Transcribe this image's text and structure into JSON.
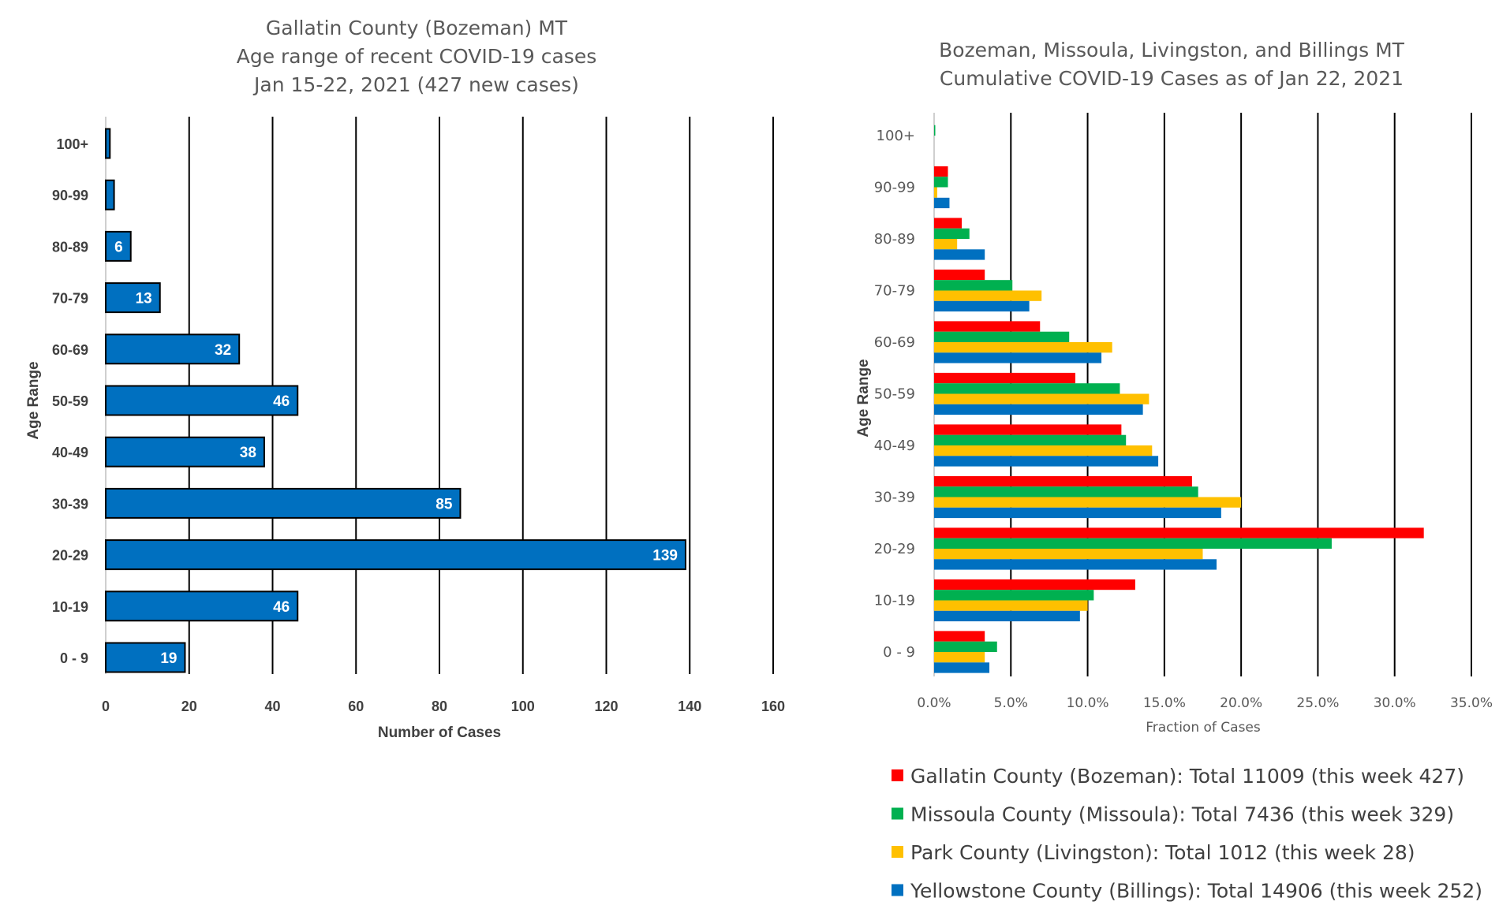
{
  "chart_data": [
    {
      "type": "bar",
      "orientation": "horizontal",
      "title_lines": [
        "Gallatin County (Bozeman) MT",
        "Age range of recent COVID-19 cases",
        "Jan 15-22, 2021 (427 new cases)"
      ],
      "xlabel": "Number of Cases",
      "ylabel": "Age Range",
      "categories": [
        "100+",
        "90-99",
        "80-89",
        "70-79",
        "60-69",
        "50-59",
        "40-49",
        "30-39",
        "20-29",
        "10-19",
        "0 - 9"
      ],
      "values": [
        1,
        2,
        6,
        13,
        32,
        46,
        38,
        85,
        139,
        46,
        19
      ],
      "data_labels": [
        "",
        "",
        "6",
        "13",
        "32",
        "46",
        "38",
        "85",
        "139",
        "46",
        "19"
      ],
      "xlim": [
        0,
        160
      ],
      "xticks": [
        0,
        20,
        40,
        60,
        80,
        100,
        120,
        140,
        160
      ],
      "xtick_labels": [
        "0",
        "20",
        "40",
        "60",
        "80",
        "100",
        "120",
        "140",
        "160"
      ],
      "grid": "vertical",
      "bar_color": "#0070c0"
    },
    {
      "type": "bar",
      "orientation": "horizontal",
      "title_lines": [
        "Bozeman, Missoula, Livingston, and Billings MT",
        "Cumulative COVID-19 Cases as of Jan 22, 2021"
      ],
      "xlabel": "Fraction of Cases",
      "ylabel": "Age Range",
      "categories": [
        "100+",
        "90-99",
        "80-89",
        "70-79",
        "60-69",
        "50-59",
        "40-49",
        "30-39",
        "20-29",
        "10-19",
        "0 - 9"
      ],
      "xlim": [
        0,
        0.35
      ],
      "xticks": [
        0,
        0.05,
        0.1,
        0.15,
        0.2,
        0.25,
        0.3,
        0.35
      ],
      "xtick_labels": [
        "0.0%",
        "5.0%",
        "10.0%",
        "15.0%",
        "20.0%",
        "25.0%",
        "30.0%",
        "35.0%"
      ],
      "grid": "vertical",
      "legend_position": "bottom",
      "series": [
        {
          "name": "Gallatin County (Bozeman): Total 11009 (this week 427)",
          "color": "#ff0000",
          "values": [
            0.0,
            0.009,
            0.018,
            0.033,
            0.069,
            0.092,
            0.122,
            0.168,
            0.319,
            0.131,
            0.033
          ]
        },
        {
          "name": "Missoula County (Missoula): Total 7436 (this week 329)",
          "color": "#00b050",
          "values": [
            0.0006,
            0.009,
            0.023,
            0.051,
            0.088,
            0.121,
            0.125,
            0.172,
            0.259,
            0.104,
            0.041
          ]
        },
        {
          "name": "Park County (Livingston): Total 1012 (this week 28)",
          "color": "#ffc000",
          "values": [
            0.0,
            0.002,
            0.015,
            0.07,
            0.116,
            0.14,
            0.142,
            0.2,
            0.175,
            0.1,
            0.033
          ]
        },
        {
          "name": "Yellowstone County (Billings): Total 14906 (this week 252)",
          "color": "#0070c0",
          "values": [
            0.0,
            0.01,
            0.033,
            0.062,
            0.109,
            0.136,
            0.146,
            0.187,
            0.184,
            0.095,
            0.036
          ]
        }
      ]
    }
  ]
}
